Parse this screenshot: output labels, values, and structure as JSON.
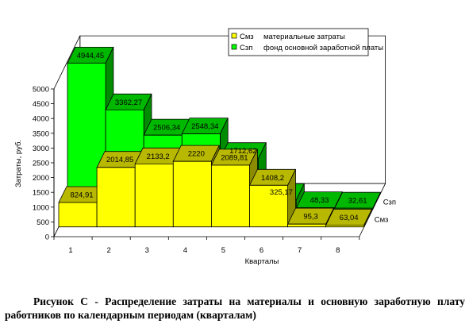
{
  "chart_data": {
    "type": "bar",
    "subtype": "3d-bar-depth",
    "categories": [
      "1",
      "2",
      "3",
      "4",
      "5",
      "6",
      "7",
      "8"
    ],
    "series": [
      {
        "name": "Смз",
        "legend_text": "материальные затраты",
        "color": "#ffff00",
        "values": [
          824.91,
          2014.85,
          2133.2,
          2220,
          2089.81,
          1408.2,
          95.3,
          63.04
        ],
        "labels": [
          "824,91",
          "2014,85",
          "2133,2",
          "2220",
          "2089,81",
          "1408,2",
          "95,3",
          "63,04"
        ]
      },
      {
        "name": "Сзп",
        "legend_text": "фонд основной заработной платы",
        "color": "#00ff00",
        "values": [
          4944.45,
          3362.27,
          2506.34,
          2548.34,
          1712.62,
          325.17,
          48.33,
          32.61
        ],
        "labels": [
          "4944,45",
          "3362,27",
          "2506,34",
          "2548,34",
          "1712,62",
          "325,17",
          "48,33",
          "32,61"
        ]
      }
    ],
    "xlabel": "Кварталы",
    "ylabel": "Затраты, руб.",
    "ylim": [
      0,
      5000
    ],
    "yticks": [
      "0",
      "500",
      "1000",
      "1500",
      "2000",
      "2500",
      "3000",
      "3500",
      "4000",
      "4500",
      "5000"
    ],
    "legend_position": "top-right",
    "grid": false
  },
  "caption": {
    "line1": "Рисунок С - Распределение затраты на материалы и основную заработную плату",
    "line2": "работников по календарным периодам (кварталам)"
  }
}
